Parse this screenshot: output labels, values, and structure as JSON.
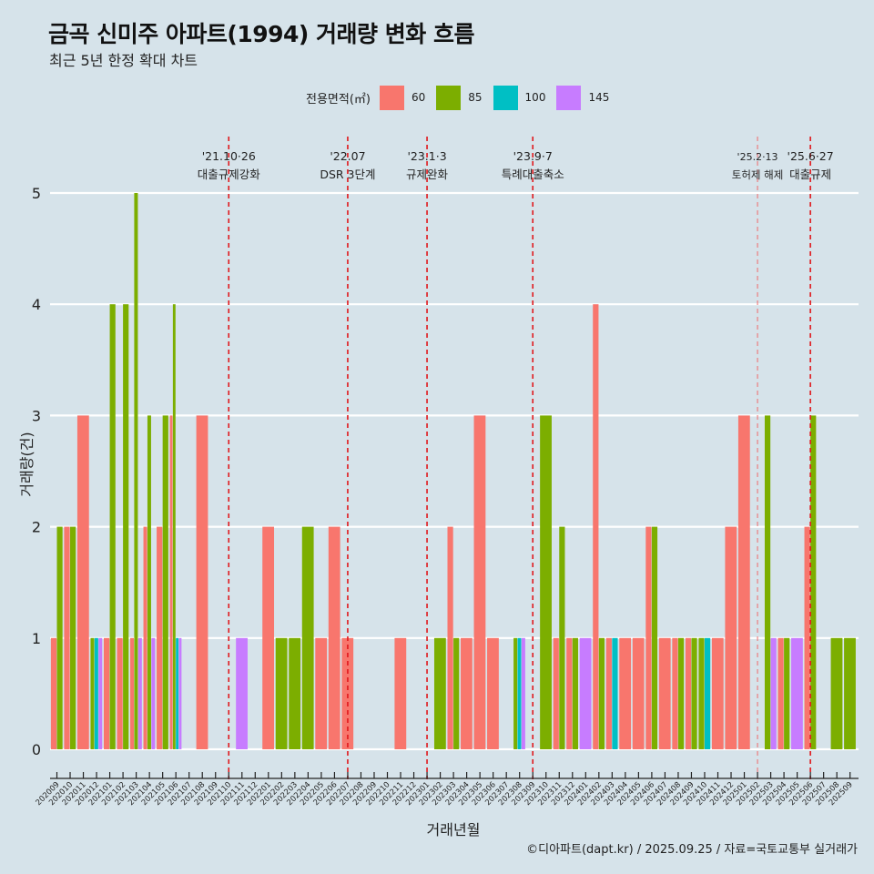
{
  "title": "금곡 신미주 아파트(1994) 거래량 변화 흐름",
  "subtitle": "최근 5년 한정 확대 차트",
  "caption": "©디아파트(dapt.kr) / 2025.09.25 / 자료=국토교통부 실거래가",
  "legend": {
    "title": "전용면적(㎡)",
    "items": [
      {
        "label": "60",
        "color": "#F8766D"
      },
      {
        "label": "85",
        "color": "#7CAE00"
      },
      {
        "label": "100",
        "color": "#00BFC4"
      },
      {
        "label": "145",
        "color": "#C77CFF"
      }
    ]
  },
  "chart_data": {
    "type": "bar",
    "title": "금곡 신미주 아파트(1994) 거래량 변화 흐름",
    "xlabel": "거래년월",
    "ylabel": "거래량(건)",
    "ylim": [
      0,
      5
    ],
    "yticks": [
      0,
      1,
      2,
      3,
      4,
      5
    ],
    "grid": "horizontal",
    "legend_position": "top",
    "categories": [
      "202009",
      "202010",
      "202011",
      "202012",
      "202101",
      "202102",
      "202103",
      "202104",
      "202105",
      "202106",
      "202107",
      "202108",
      "202109",
      "202110",
      "202111",
      "202112",
      "202201",
      "202202",
      "202203",
      "202204",
      "202205",
      "202206",
      "202207",
      "202208",
      "202209",
      "202210",
      "202211",
      "202212",
      "202301",
      "202302",
      "202303",
      "202304",
      "202305",
      "202306",
      "202307",
      "202308",
      "202309",
      "202310",
      "202311",
      "202312",
      "202401",
      "202402",
      "202403",
      "202404",
      "202405",
      "202406",
      "202407",
      "202408",
      "202409",
      "202410",
      "202411",
      "202412",
      "202501",
      "202502",
      "202503",
      "202504",
      "202505",
      "202506",
      "202507",
      "202508",
      "202509"
    ],
    "series": [
      {
        "name": "60",
        "values": [
          1,
          2,
          3,
          0,
          1,
          1,
          1,
          2,
          2,
          3,
          0,
          3,
          0,
          0,
          0,
          0,
          2,
          0,
          0,
          0,
          1,
          2,
          1,
          0,
          0,
          0,
          1,
          0,
          0,
          0,
          2,
          1,
          3,
          1,
          0,
          0,
          0,
          0,
          1,
          1,
          0,
          4,
          1,
          1,
          1,
          2,
          1,
          1,
          1,
          0,
          1,
          2,
          3,
          0,
          0,
          1,
          0,
          2,
          0,
          0,
          0
        ]
      },
      {
        "name": "85",
        "values": [
          2,
          2,
          0,
          1,
          4,
          4,
          5,
          3,
          3,
          4,
          0,
          0,
          0,
          0,
          0,
          0,
          0,
          1,
          1,
          2,
          0,
          0,
          0,
          0,
          0,
          0,
          0,
          0,
          0,
          1,
          1,
          0,
          0,
          0,
          0,
          1,
          0,
          3,
          2,
          1,
          0,
          1,
          0,
          0,
          0,
          2,
          0,
          1,
          1,
          1,
          0,
          0,
          0,
          0,
          3,
          1,
          0,
          3,
          0,
          1,
          1
        ]
      },
      {
        "name": "100",
        "values": [
          0,
          0,
          0,
          1,
          0,
          0,
          0,
          0,
          0,
          1,
          0,
          0,
          0,
          0,
          0,
          0,
          0,
          0,
          0,
          0,
          0,
          0,
          0,
          0,
          0,
          0,
          0,
          0,
          0,
          0,
          0,
          0,
          0,
          0,
          0,
          1,
          0,
          0,
          0,
          0,
          0,
          0,
          1,
          0,
          0,
          0,
          0,
          0,
          0,
          1,
          0,
          0,
          0,
          0,
          0,
          0,
          0,
          0,
          0,
          0,
          0
        ]
      },
      {
        "name": "145",
        "values": [
          0,
          0,
          0,
          1,
          0,
          0,
          1,
          1,
          0,
          1,
          0,
          0,
          0,
          0,
          1,
          0,
          0,
          0,
          0,
          0,
          0,
          0,
          0,
          0,
          0,
          0,
          0,
          0,
          0,
          0,
          0,
          0,
          0,
          0,
          0,
          1,
          0,
          0,
          0,
          0,
          1,
          0,
          0,
          0,
          0,
          0,
          0,
          0,
          0,
          0,
          0,
          0,
          0,
          0,
          1,
          0,
          1,
          0,
          0,
          0,
          0
        ]
      }
    ],
    "annotations": [
      {
        "month": "202110",
        "date": "'21.10·26",
        "label": "대출규제강화",
        "style": "bold"
      },
      {
        "month": "202207",
        "date": "'22.07",
        "label": "DSR 3단계",
        "style": "bold"
      },
      {
        "month": "202301",
        "date": "'23.1·3",
        "label": "규제완화",
        "style": "bold"
      },
      {
        "month": "202309",
        "date": "'23.9·7",
        "label": "특례대출축소",
        "style": "bold"
      },
      {
        "month": "202502",
        "date": "'25.2·13",
        "label": "토허제 해제",
        "style": "light"
      },
      {
        "month": "202506",
        "date": "'25.6·27",
        "label": "대출규제",
        "style": "bold"
      }
    ]
  }
}
